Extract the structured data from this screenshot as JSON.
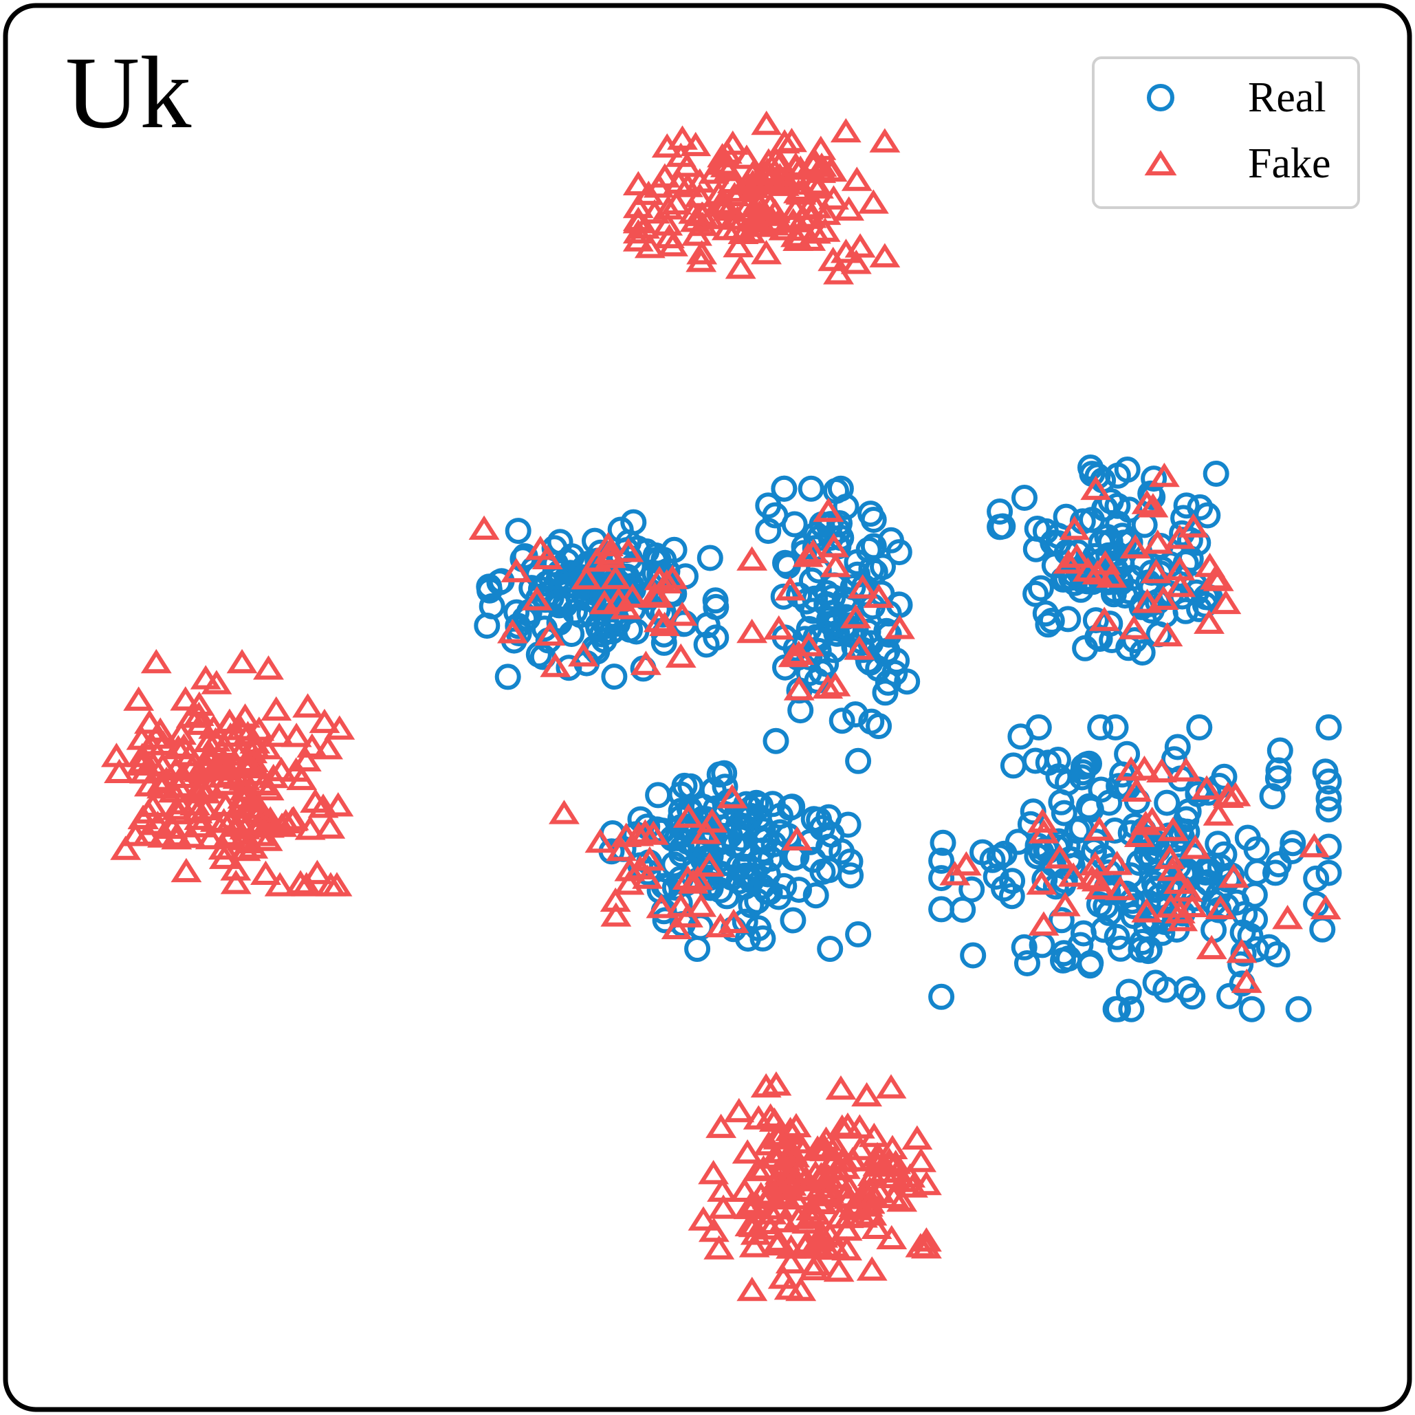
{
  "chart_data": {
    "type": "scatter",
    "title": "Uk",
    "xlabel": "",
    "ylabel": "",
    "xlim": [
      0,
      100
    ],
    "ylim": [
      0,
      100
    ],
    "grid": false,
    "axes_visible": false,
    "legend_position": "top-right",
    "colors": {
      "real": "#1485cc",
      "fake": "#f25252"
    },
    "series": [
      {
        "name": "Real",
        "marker": "circle",
        "clusters": [
          {
            "cx": 42,
            "cy": 58,
            "sx": 3.9,
            "sy": 2.7,
            "n": 150
          },
          {
            "cx": 60,
            "cy": 57,
            "sx": 2.5,
            "sy": 4.3,
            "n": 110
          },
          {
            "cx": 80,
            "cy": 61,
            "sx": 3.7,
            "sy": 3.2,
            "n": 120
          },
          {
            "cx": 52,
            "cy": 39,
            "sx": 4.2,
            "sy": 3.2,
            "n": 150
          },
          {
            "cx": 82,
            "cy": 38,
            "sx": 6.6,
            "sy": 4.8,
            "n": 220
          }
        ]
      },
      {
        "name": "Fake",
        "marker": "triangle",
        "clusters": [
          {
            "cx": 54,
            "cy": 88,
            "sx": 4.2,
            "sy": 2.6,
            "n": 140
          },
          {
            "cx": 14,
            "cy": 45,
            "sx": 3.8,
            "sy": 3.8,
            "n": 170
          },
          {
            "cx": 58,
            "cy": 14,
            "sx": 3.8,
            "sy": 3.5,
            "n": 170
          },
          {
            "cx": 42,
            "cy": 59,
            "sx": 4.0,
            "sy": 2.7,
            "n": 30
          },
          {
            "cx": 59,
            "cy": 58,
            "sx": 2.6,
            "sy": 4.0,
            "n": 20
          },
          {
            "cx": 82,
            "cy": 61,
            "sx": 3.6,
            "sy": 3.0,
            "n": 28
          },
          {
            "cx": 48,
            "cy": 38,
            "sx": 4.0,
            "sy": 3.2,
            "n": 30
          },
          {
            "cx": 82,
            "cy": 39,
            "sx": 6.5,
            "sy": 4.5,
            "n": 48
          }
        ]
      }
    ]
  }
}
